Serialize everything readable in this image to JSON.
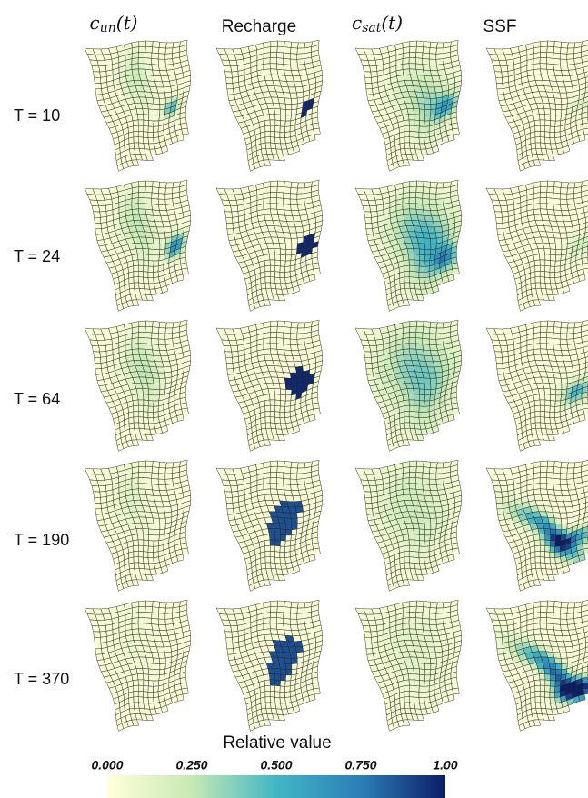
{
  "columns": [
    {
      "base": "c",
      "sub": "un",
      "suffix": "(t)"
    },
    {
      "label": "Recharge"
    },
    {
      "base": "c",
      "sub": "sat",
      "suffix": "(t)"
    },
    {
      "label": "SSF"
    }
  ],
  "rows": [
    "T = 10",
    "T = 24",
    "T = 64",
    "T = 190",
    "T = 370"
  ],
  "colorbar": {
    "title": "Relative value",
    "ticks": [
      {
        "value": 0,
        "label": "0.000"
      },
      {
        "value": 0.25,
        "label": "0.250"
      },
      {
        "value": 0.5,
        "label": "0.500"
      },
      {
        "value": 0.75,
        "label": "0.750"
      },
      {
        "value": 1,
        "label": "1.00"
      }
    ]
  }
}
